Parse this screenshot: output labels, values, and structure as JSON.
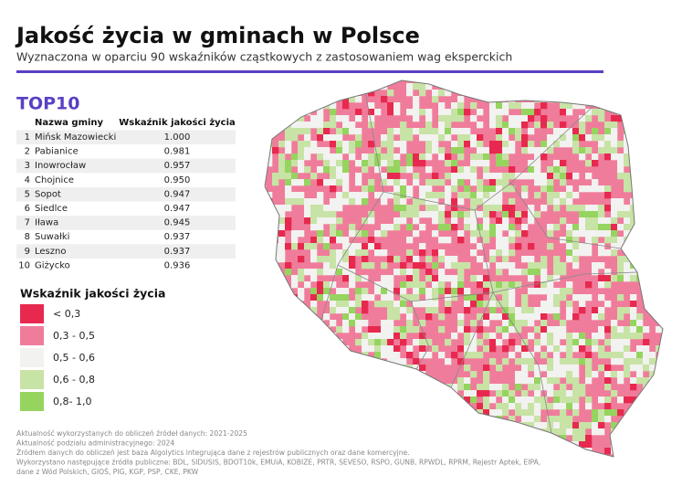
{
  "header": {
    "title": "Jakość życia w gminach w Polsce",
    "subtitle": "Wyznaczona w oparciu 90 wskaźników cząstkowych z zastosowaniem wag eksperckich"
  },
  "top10": {
    "title": "TOP10",
    "columns": [
      "Nazwa gminy",
      "Wskaźnik jakości życia"
    ],
    "rows": [
      [
        "1",
        "Mińsk Mazowiecki",
        "1.000"
      ],
      [
        "2",
        "Pabianice",
        "0.981"
      ],
      [
        "3",
        "Inowrocław",
        "0.957"
      ],
      [
        "4",
        "Chojnice",
        "0.950"
      ],
      [
        "5",
        "Sopot",
        "0.947"
      ],
      [
        "6",
        "Siedlce",
        "0.947"
      ],
      [
        "7",
        "Iława",
        "0.945"
      ],
      [
        "8",
        "Suwałki",
        "0.937"
      ],
      [
        "9",
        "Leszno",
        "0.937"
      ],
      [
        "10",
        "Giżycko",
        "0.936"
      ]
    ]
  },
  "legend": {
    "title": "Wskaźnik jakości życia",
    "items": [
      {
        "label": "< 0,3",
        "color": "#e8294f"
      },
      {
        "label": "0,3 - 0,5",
        "color": "#f07c9b"
      },
      {
        "label": "0,5 - 0,6",
        "color": "#f2f2f0"
      },
      {
        "label": "0,6 - 0,8",
        "color": "#c8e3a6"
      },
      {
        "label": "0,8- 1,0",
        "color": "#96d460"
      }
    ]
  },
  "footnotes": [
    "Aktualność wykorzystanych do obliczeń źródeł danych: 2021-2025",
    "Aktualność podziału administracyjnego: 2024",
    "Źródłem danych do obliczeń jest baza Algolytics integrująca dane z rejestrów publicznych oraz dane komercyjne.",
    "Wykorzystano następujące źródła publiczne: BDL, SIDUSIS, BDOT10k, EMUiA, KOBIZE, PRTR, SEVESO, RSPO, GUNB, RPWDL, RPRM, Rejestr Aptek, EIPA,",
    "dane z Wód Polskich, GIOŚ, PIG, KGP, PSP, CKE, PKW"
  ]
}
